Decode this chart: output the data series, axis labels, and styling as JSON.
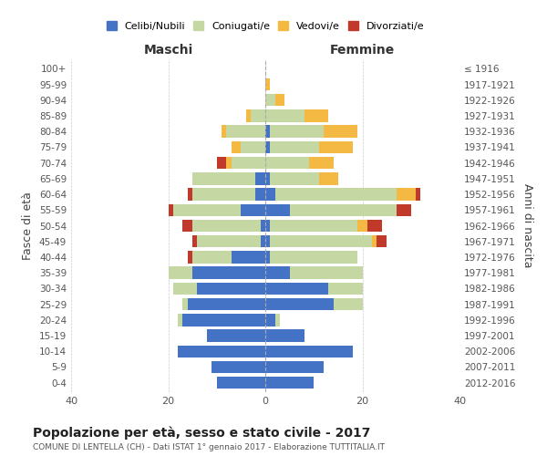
{
  "age_groups": [
    "0-4",
    "5-9",
    "10-14",
    "15-19",
    "20-24",
    "25-29",
    "30-34",
    "35-39",
    "40-44",
    "45-49",
    "50-54",
    "55-59",
    "60-64",
    "65-69",
    "70-74",
    "75-79",
    "80-84",
    "85-89",
    "90-94",
    "95-99",
    "100+"
  ],
  "birth_years": [
    "2012-2016",
    "2007-2011",
    "2002-2006",
    "1997-2001",
    "1992-1996",
    "1987-1991",
    "1982-1986",
    "1977-1981",
    "1972-1976",
    "1967-1971",
    "1962-1966",
    "1957-1961",
    "1952-1956",
    "1947-1951",
    "1942-1946",
    "1937-1941",
    "1932-1936",
    "1927-1931",
    "1922-1926",
    "1917-1921",
    "≤ 1916"
  ],
  "males": {
    "celibi": [
      10,
      11,
      18,
      12,
      17,
      16,
      14,
      15,
      7,
      1,
      1,
      5,
      2,
      2,
      0,
      0,
      0,
      0,
      0,
      0,
      0
    ],
    "coniugati": [
      0,
      0,
      0,
      0,
      1,
      1,
      5,
      5,
      8,
      13,
      14,
      14,
      13,
      13,
      7,
      5,
      8,
      3,
      0,
      0,
      0
    ],
    "vedovi": [
      0,
      0,
      0,
      0,
      0,
      0,
      0,
      0,
      0,
      0,
      0,
      0,
      0,
      0,
      1,
      2,
      1,
      1,
      0,
      0,
      0
    ],
    "divorziati": [
      0,
      0,
      0,
      0,
      0,
      0,
      0,
      0,
      1,
      1,
      2,
      1,
      1,
      0,
      2,
      0,
      0,
      0,
      0,
      0,
      0
    ]
  },
  "females": {
    "nubili": [
      10,
      12,
      18,
      8,
      2,
      14,
      13,
      5,
      1,
      1,
      1,
      5,
      2,
      1,
      0,
      1,
      1,
      0,
      0,
      0,
      0
    ],
    "coniugate": [
      0,
      0,
      0,
      0,
      1,
      6,
      7,
      15,
      18,
      21,
      18,
      22,
      25,
      10,
      9,
      10,
      11,
      8,
      2,
      0,
      0
    ],
    "vedove": [
      0,
      0,
      0,
      0,
      0,
      0,
      0,
      0,
      0,
      1,
      2,
      0,
      4,
      4,
      5,
      7,
      7,
      5,
      2,
      1,
      0
    ],
    "divorziate": [
      0,
      0,
      0,
      0,
      0,
      0,
      0,
      0,
      0,
      2,
      3,
      3,
      1,
      0,
      0,
      0,
      0,
      0,
      0,
      0,
      0
    ]
  },
  "colors": {
    "celibi": "#4472c4",
    "coniugati": "#c5d8a4",
    "vedovi": "#f4b942",
    "divorziati": "#c0392b"
  },
  "xlim": 40,
  "title": "Popolazione per età, sesso e stato civile - 2017",
  "subtitle": "COMUNE DI LENTELLA (CH) - Dati ISTAT 1° gennaio 2017 - Elaborazione TUTTITALIA.IT",
  "ylabel_left": "Fasce di età",
  "ylabel_right": "Anni di nascita",
  "xlabel_left": "Maschi",
  "xlabel_right": "Femmine",
  "legend_labels": [
    "Celibi/Nubili",
    "Coniugati/e",
    "Vedovi/e",
    "Divorziati/e"
  ],
  "bg_color": "#ffffff",
  "grid_color": "#cccccc"
}
